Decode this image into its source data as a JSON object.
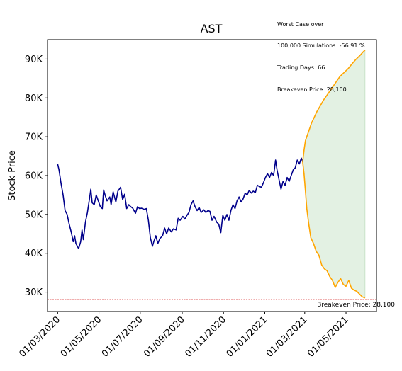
{
  "chart_data": {
    "type": "line",
    "title": "AST",
    "xlabel": "",
    "ylabel": "Stock Price",
    "ylim": [
      25000,
      95000
    ],
    "xlim": [
      "2020-02-15",
      "2021-06-15"
    ],
    "x_ticks": [
      "2020-03-01",
      "2020-05-01",
      "2020-07-01",
      "2020-09-01",
      "2020-11-01",
      "2021-01-01",
      "2021-03-01",
      "2021-05-01"
    ],
    "x_tick_labels": [
      "01/03/2020",
      "01/05/2020",
      "01/07/2020",
      "01/09/2020",
      "01/11/2020",
      "01/01/2021",
      "01/03/2021",
      "01/05/2021"
    ],
    "y_ticks": [
      30000,
      40000,
      50000,
      60000,
      70000,
      80000,
      90000
    ],
    "y_tick_labels": [
      "30K",
      "40K",
      "50K",
      "60K",
      "70K",
      "80K",
      "90K"
    ],
    "colors": {
      "history": "#00008b",
      "simulation": "#ffa500",
      "band_fill": "#e3f1e3",
      "band_edge": "#c9e3c9",
      "breakeven": "#d62728"
    },
    "series": [
      {
        "color_key": "history",
        "points": [
          [
            "2020-03-01",
            63000
          ],
          [
            "2020-03-03",
            61500
          ],
          [
            "2020-03-06",
            58000
          ],
          [
            "2020-03-09",
            55000
          ],
          [
            "2020-03-12",
            51000
          ],
          [
            "2020-03-15",
            50000
          ],
          [
            "2020-03-18",
            47500
          ],
          [
            "2020-03-21",
            45500
          ],
          [
            "2020-03-24",
            43000
          ],
          [
            "2020-03-26",
            44500
          ],
          [
            "2020-03-28",
            42500
          ],
          [
            "2020-04-01",
            41200
          ],
          [
            "2020-04-04",
            43000
          ],
          [
            "2020-04-06",
            46000
          ],
          [
            "2020-04-08",
            43500
          ],
          [
            "2020-04-11",
            48000
          ],
          [
            "2020-04-14",
            50500
          ],
          [
            "2020-04-17",
            54000
          ],
          [
            "2020-04-19",
            56500
          ],
          [
            "2020-04-21",
            53000
          ],
          [
            "2020-04-24",
            52500
          ],
          [
            "2020-04-27",
            55000
          ],
          [
            "2020-04-30",
            53500
          ],
          [
            "2020-05-03",
            52000
          ],
          [
            "2020-05-06",
            51500
          ],
          [
            "2020-05-08",
            56300
          ],
          [
            "2020-05-10",
            55000
          ],
          [
            "2020-05-13",
            53500
          ],
          [
            "2020-05-17",
            54500
          ],
          [
            "2020-05-19",
            52500
          ],
          [
            "2020-05-22",
            55800
          ],
          [
            "2020-05-26",
            53200
          ],
          [
            "2020-05-29",
            56000
          ],
          [
            "2020-06-02",
            57000
          ],
          [
            "2020-06-05",
            53800
          ],
          [
            "2020-06-08",
            55200
          ],
          [
            "2020-06-11",
            51500
          ],
          [
            "2020-06-14",
            52500
          ],
          [
            "2020-06-17",
            52000
          ],
          [
            "2020-06-20",
            51600
          ],
          [
            "2020-06-24",
            50300
          ],
          [
            "2020-06-27",
            52000
          ],
          [
            "2020-06-30",
            51500
          ],
          [
            "2020-07-03",
            51600
          ],
          [
            "2020-07-07",
            51300
          ],
          [
            "2020-07-10",
            51500
          ],
          [
            "2020-07-13",
            48500
          ],
          [
            "2020-07-16",
            44000
          ],
          [
            "2020-07-19",
            41800
          ],
          [
            "2020-07-21",
            43000
          ],
          [
            "2020-07-24",
            44500
          ],
          [
            "2020-07-27",
            42500
          ],
          [
            "2020-07-30",
            43800
          ],
          [
            "2020-08-03",
            44500
          ],
          [
            "2020-08-06",
            46500
          ],
          [
            "2020-08-09",
            45000
          ],
          [
            "2020-08-12",
            46500
          ],
          [
            "2020-08-16",
            45500
          ],
          [
            "2020-08-19",
            46300
          ],
          [
            "2020-08-23",
            46000
          ],
          [
            "2020-08-26",
            49000
          ],
          [
            "2020-08-29",
            48500
          ],
          [
            "2020-09-02",
            49500
          ],
          [
            "2020-09-05",
            48800
          ],
          [
            "2020-09-08",
            49800
          ],
          [
            "2020-09-11",
            50500
          ],
          [
            "2020-09-14",
            52500
          ],
          [
            "2020-09-17",
            53500
          ],
          [
            "2020-09-20",
            52000
          ],
          [
            "2020-09-23",
            51000
          ],
          [
            "2020-09-26",
            51800
          ],
          [
            "2020-09-29",
            50500
          ],
          [
            "2020-10-03",
            51200
          ],
          [
            "2020-10-06",
            50500
          ],
          [
            "2020-10-09",
            51000
          ],
          [
            "2020-10-12",
            50800
          ],
          [
            "2020-10-15",
            48500
          ],
          [
            "2020-10-18",
            49500
          ],
          [
            "2020-10-22",
            48000
          ],
          [
            "2020-10-25",
            47500
          ],
          [
            "2020-10-28",
            45300
          ],
          [
            "2020-10-31",
            49800
          ],
          [
            "2020-11-03",
            48500
          ],
          [
            "2020-11-06",
            50000
          ],
          [
            "2020-11-09",
            48500
          ],
          [
            "2020-11-12",
            51000
          ],
          [
            "2020-11-15",
            52500
          ],
          [
            "2020-11-18",
            51500
          ],
          [
            "2020-11-21",
            53500
          ],
          [
            "2020-11-24",
            54500
          ],
          [
            "2020-11-27",
            53200
          ],
          [
            "2020-11-30",
            54000
          ],
          [
            "2020-12-03",
            55500
          ],
          [
            "2020-12-06",
            55000
          ],
          [
            "2020-12-09",
            56200
          ],
          [
            "2020-12-12",
            55500
          ],
          [
            "2020-12-15",
            56000
          ],
          [
            "2020-12-18",
            55600
          ],
          [
            "2020-12-21",
            57500
          ],
          [
            "2020-12-24",
            57200
          ],
          [
            "2020-12-27",
            57000
          ],
          [
            "2020-12-30",
            58200
          ],
          [
            "2021-01-02",
            59500
          ],
          [
            "2021-01-05",
            60500
          ],
          [
            "2021-01-08",
            59500
          ],
          [
            "2021-01-11",
            60800
          ],
          [
            "2021-01-14",
            60000
          ],
          [
            "2021-01-17",
            64000
          ],
          [
            "2021-01-19",
            61500
          ],
          [
            "2021-01-22",
            59000
          ],
          [
            "2021-01-25",
            56500
          ],
          [
            "2021-01-28",
            58500
          ],
          [
            "2021-01-31",
            57500
          ],
          [
            "2021-02-03",
            59500
          ],
          [
            "2021-02-06",
            58500
          ],
          [
            "2021-02-09",
            60000
          ],
          [
            "2021-02-12",
            61500
          ],
          [
            "2021-02-15",
            62000
          ],
          [
            "2021-02-18",
            64000
          ],
          [
            "2021-02-21",
            63000
          ],
          [
            "2021-02-24",
            64500
          ],
          [
            "2021-02-26",
            63500
          ]
        ]
      },
      {
        "color_key": "simulation",
        "points": [
          [
            "2021-02-26",
            63500
          ],
          [
            "2021-02-28",
            66500
          ],
          [
            "2021-03-02",
            69000
          ],
          [
            "2021-03-05",
            70500
          ],
          [
            "2021-03-08",
            72000
          ],
          [
            "2021-03-11",
            73500
          ],
          [
            "2021-03-15",
            75000
          ],
          [
            "2021-03-19",
            76500
          ],
          [
            "2021-03-24",
            78000
          ],
          [
            "2021-03-29",
            79500
          ],
          [
            "2021-04-04",
            81000
          ],
          [
            "2021-04-10",
            82500
          ],
          [
            "2021-04-16",
            84000
          ],
          [
            "2021-04-22",
            85500
          ],
          [
            "2021-04-28",
            86500
          ],
          [
            "2021-05-04",
            87500
          ],
          [
            "2021-05-10",
            88800
          ],
          [
            "2021-05-16",
            90000
          ],
          [
            "2021-05-22",
            91000
          ],
          [
            "2021-05-26",
            91800
          ],
          [
            "2021-05-29",
            92300
          ]
        ]
      },
      {
        "color_key": "simulation",
        "points": [
          [
            "2021-02-26",
            63500
          ],
          [
            "2021-02-28",
            60500
          ],
          [
            "2021-03-02",
            56000
          ],
          [
            "2021-03-04",
            51500
          ],
          [
            "2021-03-07",
            47500
          ],
          [
            "2021-03-10",
            44000
          ],
          [
            "2021-03-14",
            42500
          ],
          [
            "2021-03-18",
            40500
          ],
          [
            "2021-03-22",
            39500
          ],
          [
            "2021-03-26",
            37000
          ],
          [
            "2021-03-30",
            36000
          ],
          [
            "2021-04-03",
            35500
          ],
          [
            "2021-04-07",
            34000
          ],
          [
            "2021-04-11",
            33000
          ],
          [
            "2021-04-15",
            31200
          ],
          [
            "2021-04-19",
            32500
          ],
          [
            "2021-04-23",
            33500
          ],
          [
            "2021-04-27",
            32000
          ],
          [
            "2021-05-01",
            31500
          ],
          [
            "2021-05-05",
            33000
          ],
          [
            "2021-05-09",
            31000
          ],
          [
            "2021-05-13",
            30500
          ],
          [
            "2021-05-17",
            30200
          ],
          [
            "2021-05-21",
            29500
          ],
          [
            "2021-05-25",
            28800
          ],
          [
            "2021-05-29",
            28500
          ]
        ]
      }
    ],
    "shaded_band_x_range": [
      "2021-02-26",
      "2021-05-29"
    ],
    "breakeven": {
      "value": 28100,
      "label": "Breakeven Price: 28,100"
    },
    "annotation_lines": [
      "Worst Case over",
      "100,000 Simulations: -56.91 %",
      "Trading Days: 66",
      "Breakeven Price: 28,100"
    ],
    "grid": false,
    "legend": "none"
  }
}
